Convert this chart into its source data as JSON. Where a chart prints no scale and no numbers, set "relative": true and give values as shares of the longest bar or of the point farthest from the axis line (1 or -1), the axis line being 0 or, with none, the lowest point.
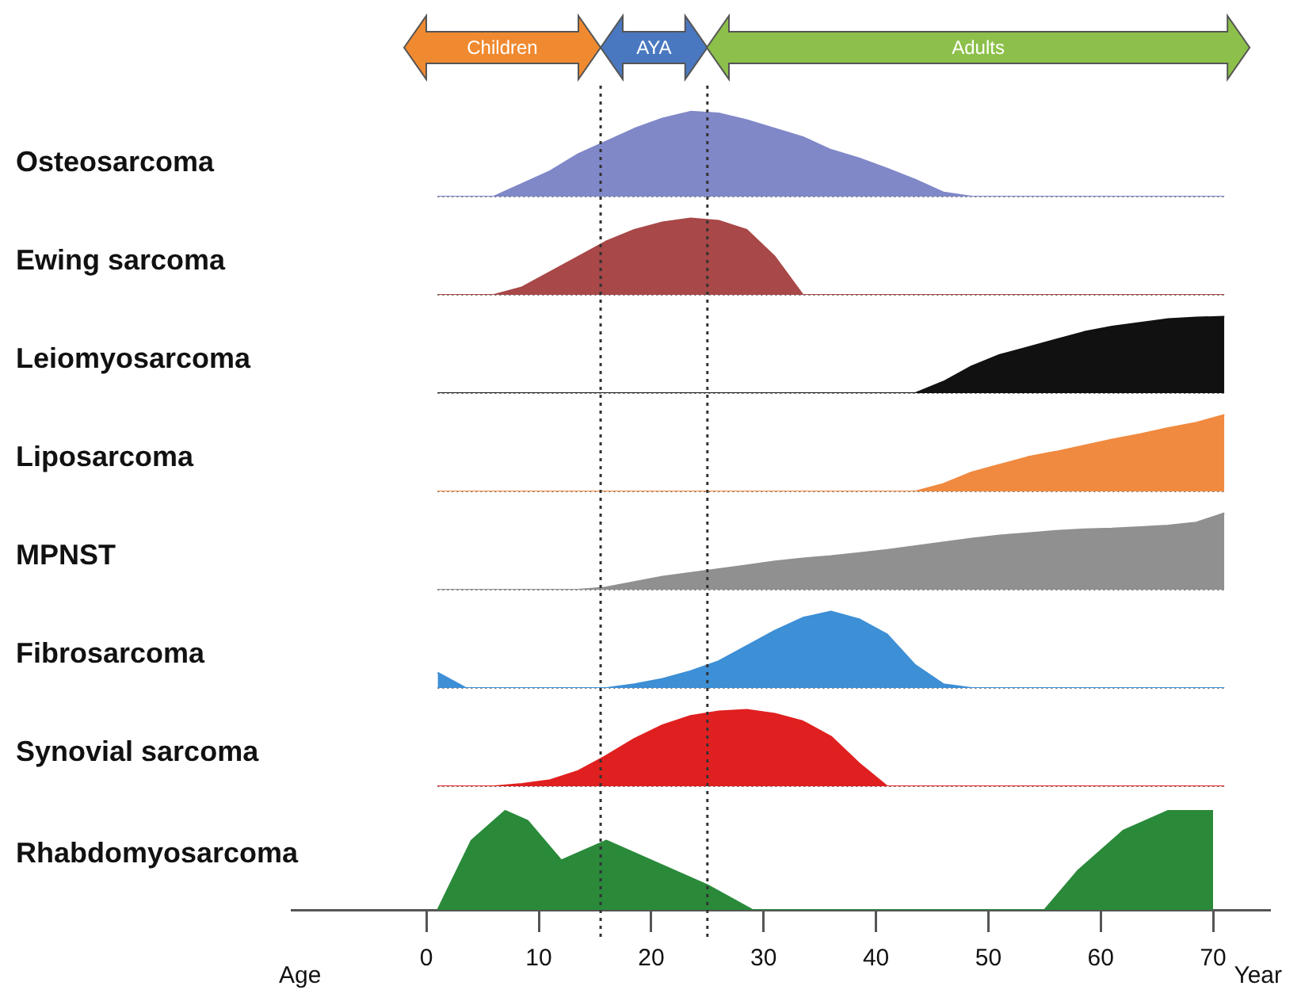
{
  "chart_data": [
    {
      "type": "area",
      "ylabel": "Osteosarcoma",
      "relative": true,
      "tick_labels": false,
      "categories": [
        null,
        null,
        null,
        null,
        null,
        null,
        null,
        null,
        null,
        null,
        null,
        null,
        null,
        null,
        null,
        null,
        null,
        null,
        null,
        null,
        null,
        null,
        null,
        null,
        null,
        null,
        null,
        null,
        null
      ],
      "series": [
        {
          "color": "#8088c8",
          "values": [
            0,
            0,
            0,
            0.15,
            0.3,
            0.5,
            0.65,
            0.8,
            0.92,
            1,
            0.98,
            0.9,
            0.8,
            0.7,
            0.55,
            0.45,
            0.33,
            0.2,
            0.05,
            0,
            0,
            0,
            0,
            0,
            0,
            0,
            0,
            0,
            0
          ]
        }
      ]
    },
    {
      "type": "area",
      "ylabel": "Ewing sarcoma",
      "relative": true,
      "tick_labels": false,
      "categories": [
        null,
        null,
        null,
        null,
        null,
        null,
        null,
        null,
        null,
        null,
        null,
        null,
        null,
        null,
        null,
        null,
        null,
        null,
        null,
        null,
        null,
        null,
        null,
        null,
        null,
        null,
        null,
        null,
        null
      ],
      "series": [
        {
          "color": "#a84848",
          "values": [
            0,
            0,
            0,
            0.1,
            0.3,
            0.5,
            0.7,
            0.85,
            0.95,
            1,
            0.97,
            0.85,
            0.5,
            0,
            0,
            0,
            0,
            0,
            0,
            0,
            0,
            0,
            0,
            0,
            0,
            0,
            0,
            0,
            0
          ]
        }
      ]
    },
    {
      "type": "area",
      "ylabel": "Leiomyosarcoma",
      "relative": true,
      "tick_labels": false,
      "categories": [
        null,
        null,
        null,
        null,
        null,
        null,
        null,
        null,
        null,
        null,
        null,
        null,
        null,
        null,
        null,
        null,
        null,
        null,
        null,
        null,
        null,
        null,
        null,
        null,
        null,
        null,
        null,
        null,
        null
      ],
      "series": [
        {
          "color": "#111111",
          "values": [
            0,
            0,
            0,
            0,
            0,
            0,
            0,
            0,
            0,
            0,
            0,
            0,
            0,
            0,
            0,
            0,
            0,
            0,
            0.15,
            0.35,
            0.5,
            0.6,
            0.7,
            0.8,
            0.87,
            0.92,
            0.97,
            0.99,
            1
          ]
        }
      ]
    },
    {
      "type": "area",
      "ylabel": "Liposarcoma",
      "relative": true,
      "tick_labels": false,
      "categories": [
        null,
        null,
        null,
        null,
        null,
        null,
        null,
        null,
        null,
        null,
        null,
        null,
        null,
        null,
        null,
        null,
        null,
        null,
        null,
        null,
        null,
        null,
        null,
        null,
        null,
        null,
        null,
        null,
        null
      ],
      "series": [
        {
          "color": "#f08a40",
          "values": [
            0,
            0,
            0,
            0,
            0,
            0,
            0,
            0,
            0,
            0,
            0,
            0,
            0,
            0,
            0,
            0,
            0,
            0,
            0.1,
            0.25,
            0.35,
            0.45,
            0.52,
            0.6,
            0.68,
            0.75,
            0.83,
            0.9,
            1
          ]
        }
      ]
    },
    {
      "type": "area",
      "ylabel": "MPNST",
      "relative": true,
      "tick_labels": false,
      "categories": [
        null,
        null,
        null,
        null,
        null,
        null,
        null,
        null,
        null,
        null,
        null,
        null,
        null,
        null,
        null,
        null,
        null,
        null,
        null,
        null,
        null,
        null,
        null,
        null,
        null,
        null,
        null,
        null,
        null
      ],
      "series": [
        {
          "color": "#909090",
          "values": [
            0,
            0,
            0,
            0,
            0,
            0,
            0.03,
            0.1,
            0.17,
            0.22,
            0.27,
            0.32,
            0.37,
            0.41,
            0.44,
            0.48,
            0.52,
            0.57,
            0.62,
            0.67,
            0.71,
            0.74,
            0.77,
            0.79,
            0.8,
            0.82,
            0.84,
            0.88,
            1
          ]
        }
      ]
    },
    {
      "type": "area",
      "ylabel": "Fibrosarcoma",
      "relative": true,
      "tick_labels": false,
      "categories": [
        null,
        null,
        null,
        null,
        null,
        null,
        null,
        null,
        null,
        null,
        null,
        null,
        null,
        null,
        null,
        null,
        null,
        null,
        null,
        null,
        null,
        null,
        null,
        null,
        null,
        null,
        null,
        null,
        null
      ],
      "series": [
        {
          "color": "#3d8fd6",
          "values": [
            0.2,
            0,
            0,
            0,
            0,
            0,
            0,
            0.05,
            0.12,
            0.22,
            0.35,
            0.55,
            0.75,
            0.92,
            1,
            0.9,
            0.7,
            0.3,
            0.05,
            0,
            0,
            0,
            0,
            0,
            0,
            0,
            0,
            0,
            0
          ]
        }
      ]
    },
    {
      "type": "area",
      "ylabel": "Synovial sarcoma",
      "relative": true,
      "tick_labels": false,
      "categories": [
        null,
        null,
        null,
        null,
        null,
        null,
        null,
        null,
        null,
        null,
        null,
        null,
        null,
        null,
        null,
        null,
        null,
        null,
        null,
        null,
        null,
        null,
        null,
        null,
        null,
        null,
        null,
        null,
        null
      ],
      "series": [
        {
          "color": "#e02020",
          "values": [
            0,
            0,
            0,
            0.03,
            0.08,
            0.2,
            0.4,
            0.62,
            0.8,
            0.92,
            0.98,
            1,
            0.95,
            0.85,
            0.65,
            0.3,
            0,
            0,
            0,
            0,
            0,
            0,
            0,
            0,
            0,
            0,
            0,
            0,
            0
          ]
        }
      ]
    },
    {
      "type": "area",
      "ylabel": "Rhabdomyosarcoma",
      "relative": true,
      "xlim": [
        -12,
        75
      ],
      "xticks": [
        0,
        10,
        20,
        30,
        40,
        50,
        60,
        70
      ],
      "tick_labels": "x",
      "xlabel": "Age",
      "annotations": [
        "Year",
        "Children",
        "AYA",
        "Adults"
      ],
      "ref_lines": [
        {
          "axis": "x",
          "value": 15.5,
          "line_style": "dotted"
        },
        {
          "axis": "x",
          "value": 25,
          "line_style": "dotted"
        }
      ],
      "series": [
        {
          "color": "#2a8a3a",
          "x": [
            1,
            4,
            7,
            9,
            12,
            16,
            20,
            25,
            29,
            55,
            58,
            62,
            66,
            70
          ],
          "values": [
            0,
            0.7,
            1,
            0.9,
            0.5,
            0.7,
            0.5,
            0.25,
            0,
            0,
            0.4,
            0.8,
            1,
            1
          ]
        }
      ]
    }
  ]
}
